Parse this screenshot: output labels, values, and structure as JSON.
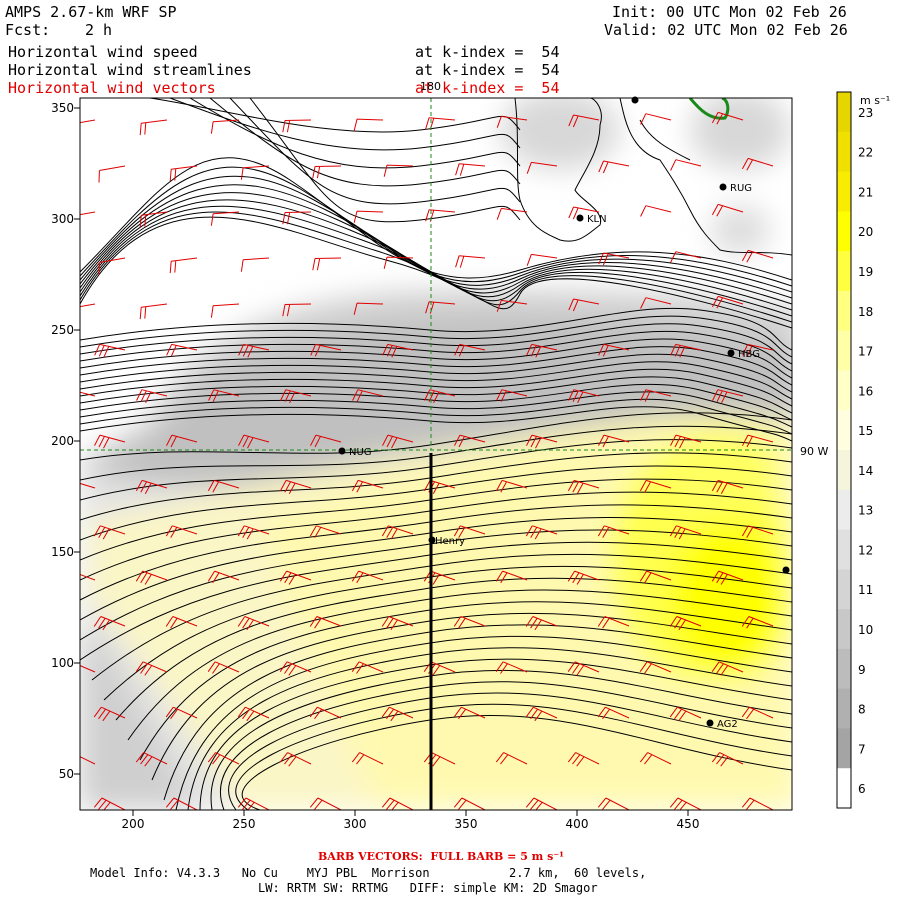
{
  "header": {
    "model_title": "AMPS 2.67-km WRF SP",
    "fcst_label": "Fcst:",
    "fcst_value": "2 h",
    "init_line": "Init: 00 UTC Mon 02 Feb 26",
    "valid_line": "Valid: 02 UTC Mon 02 Feb 26",
    "fields": [
      {
        "name": "Horizontal wind speed",
        "level": "at k-index =  54"
      },
      {
        "name": "Horizontal wind streamlines",
        "level": "at k-index =  54"
      },
      {
        "name": "Horizontal wind vectors",
        "level": "at k-index =  54"
      }
    ]
  },
  "map": {
    "x_ticks": [
      "200",
      "250",
      "300",
      "350",
      "400",
      "450"
    ],
    "y_ticks": [
      "350",
      "300",
      "250",
      "200",
      "150",
      "100",
      "50"
    ],
    "meridian_label": "180",
    "parallel_label": "90 W",
    "stations": [
      {
        "name": "RUG"
      },
      {
        "name": "KLN"
      },
      {
        "name": "HBG"
      },
      {
        "name": "NUG"
      },
      {
        "name": "Henry"
      },
      {
        "name": "AG2"
      }
    ]
  },
  "colorbar": {
    "unit": "m s⁻¹",
    "labels": [
      "23",
      "22",
      "21",
      "20",
      "19",
      "18",
      "17",
      "16",
      "15",
      "14",
      "13",
      "12",
      "11",
      "10",
      "9",
      "8",
      "7",
      "6"
    ],
    "colors": [
      "#e6d600",
      "#f0e000",
      "#f8ec00",
      "#ffff00",
      "#ffff40",
      "#ffff80",
      "#ffffa8",
      "#ffffc8",
      "#ffffe0",
      "#f5f5dc",
      "#ececec",
      "#e0e0e0",
      "#d4d4d4",
      "#c8c8c8",
      "#bcbcbc",
      "#b0b0b0",
      "#a4a4a4",
      "#ffffff"
    ]
  },
  "footer": {
    "barb_note": "BARB VECTORS:  FULL BARB = 5 m s⁻¹",
    "model_info": "Model Info: V4.3.3   No Cu    MYJ PBL  Morrison           2.7 km,  60 levels,",
    "model_info2": "LW: RRTM SW: RRTMG   DIFF: simple KM: 2D Smagor"
  }
}
